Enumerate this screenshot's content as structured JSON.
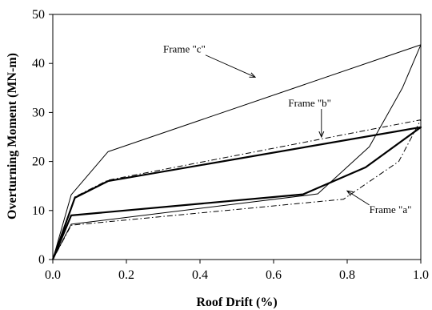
{
  "chart_data": {
    "type": "line",
    "xlabel": "Roof Drift (%)",
    "ylabel": "Overturning Moment (MN-m)",
    "xlim": [
      0,
      1
    ],
    "ylim": [
      0,
      50
    ],
    "x_ticks": [
      "0.0",
      "0.2",
      "0.4",
      "0.6",
      "0.8",
      "1.0"
    ],
    "y_ticks": [
      "0",
      "10",
      "20",
      "30",
      "40",
      "50"
    ],
    "grid": false,
    "legend": "none",
    "series": [
      {
        "name": "Frame \"c\"",
        "style": "solid-thin",
        "color": "#000000",
        "x": [
          0,
          0.05,
          0.15,
          1.0,
          0.95,
          0.86,
          0.72,
          0.7,
          0.05,
          0
        ],
        "y": [
          0,
          13.2,
          22.0,
          43.8,
          35.0,
          23.0,
          13.4,
          13.2,
          7.2,
          0
        ]
      },
      {
        "name": "Frame \"b\"",
        "style": "dash-dot",
        "color": "#000000",
        "x": [
          0,
          0.06,
          0.15,
          1.0,
          0.94,
          0.79,
          0.05,
          0
        ],
        "y": [
          0,
          12.8,
          16.2,
          28.5,
          20.0,
          12.3,
          7.0,
          0
        ]
      },
      {
        "name": "Frame \"a\"",
        "style": "solid-thick",
        "color": "#000000",
        "x": [
          0,
          0.06,
          0.15,
          1.0,
          0.85,
          0.68,
          0.05,
          0
        ],
        "y": [
          0,
          12.6,
          16.0,
          27.0,
          18.8,
          13.3,
          9.0,
          0
        ]
      }
    ],
    "annotations": [
      {
        "text": "Frame \"c\"",
        "x": 0.3,
        "y": 42.2,
        "arrow_to": [
          0.55,
          37.2
        ]
      },
      {
        "text": "Frame \"b\"",
        "x": 0.64,
        "y": 31.2,
        "arrow_to": [
          0.73,
          25.0
        ]
      },
      {
        "text": "Frame \"a\"",
        "x": 0.86,
        "y": 9.5,
        "arrow_to": [
          0.8,
          14.0
        ]
      }
    ]
  }
}
